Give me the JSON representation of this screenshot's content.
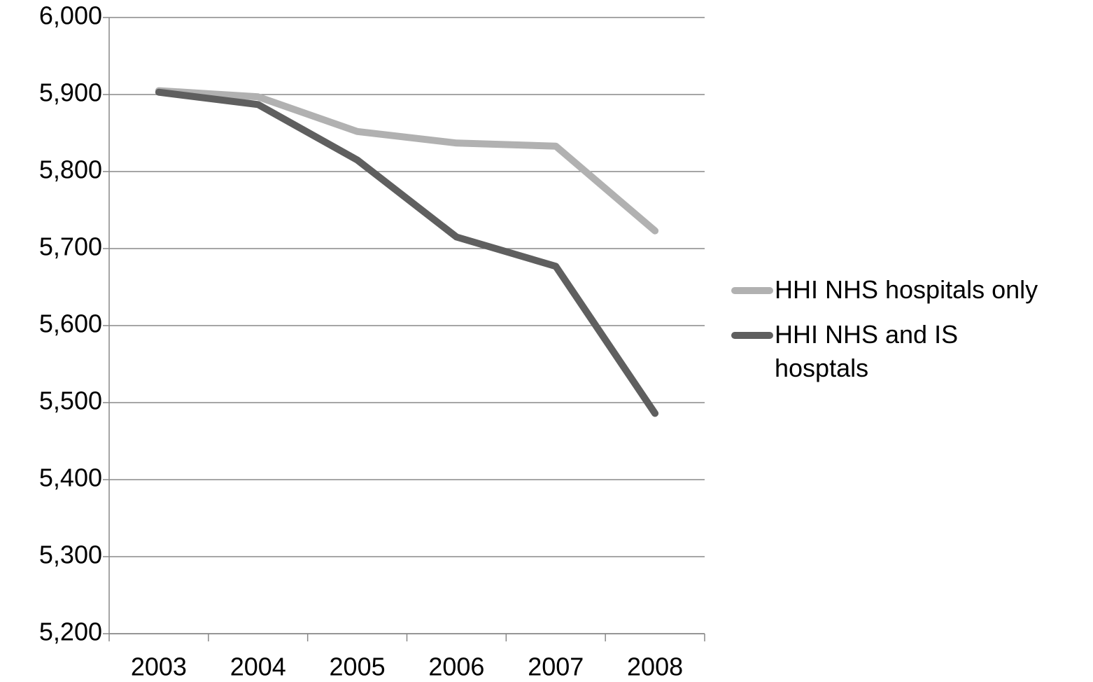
{
  "chart_data": {
    "type": "line",
    "categories": [
      "2003",
      "2004",
      "2005",
      "2006",
      "2007",
      "2008"
    ],
    "series": [
      {
        "name": "HHI NHS hospitals only",
        "color": "#b1b1b1",
        "values": [
          5905,
          5897,
          5852,
          5837,
          5833,
          5723
        ]
      },
      {
        "name": "HHI NHS and IS hosptals",
        "color": "#5f5f5f",
        "values": [
          5903,
          5887,
          5815,
          5715,
          5677,
          5486
        ]
      }
    ],
    "ylim": [
      5200,
      6000
    ],
    "yticks": [
      {
        "value": 5200,
        "label": "5,200"
      },
      {
        "value": 5300,
        "label": "5,300"
      },
      {
        "value": 5400,
        "label": "5,400"
      },
      {
        "value": 5500,
        "label": "5,500"
      },
      {
        "value": 5600,
        "label": "5,600"
      },
      {
        "value": 5700,
        "label": "5,700"
      },
      {
        "value": 5800,
        "label": "5,800"
      },
      {
        "value": 5900,
        "label": "5,900"
      },
      {
        "value": 6000,
        "label": "6,000"
      }
    ],
    "grid": true,
    "legend": "right"
  }
}
